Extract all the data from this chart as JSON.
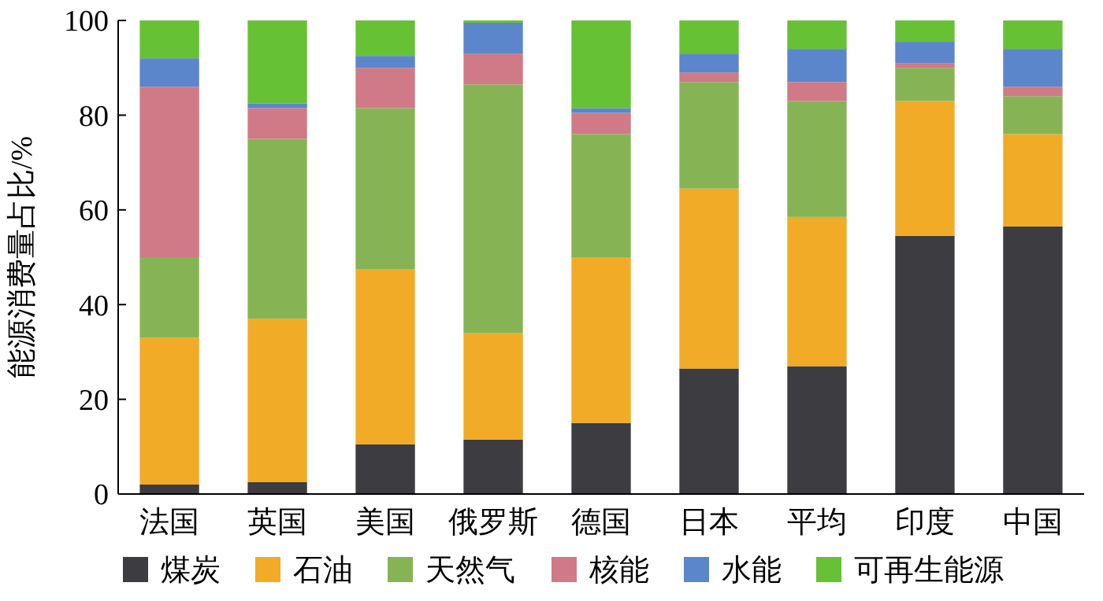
{
  "chart_data": {
    "type": "bar",
    "stacked": true,
    "ylabel": "能源消费量占比/%",
    "categories": [
      "法国",
      "英国",
      "美国",
      "俄罗斯",
      "德国",
      "日本",
      "平均",
      "印度",
      "中国"
    ],
    "series": [
      {
        "name": "煤炭",
        "color": "#3d3c40",
        "values": [
          2,
          2.5,
          10.5,
          11.5,
          15,
          26.5,
          27,
          54.5,
          56.5
        ]
      },
      {
        "name": "石油",
        "color": "#f2ab27",
        "values": [
          31,
          34.5,
          37,
          22.5,
          35,
          38,
          31.5,
          28.5,
          19.5
        ]
      },
      {
        "name": "天然气",
        "color": "#86b454",
        "values": [
          17,
          38,
          34,
          52.5,
          26,
          22.5,
          24.5,
          7,
          8
        ]
      },
      {
        "name": "核能",
        "color": "#cf7a86",
        "values": [
          36,
          6.5,
          8.5,
          6.5,
          4.5,
          2,
          4,
          1,
          2
        ]
      },
      {
        "name": "水能",
        "color": "#5b86cc",
        "values": [
          6,
          1,
          2.5,
          6.5,
          1,
          4,
          7,
          4.5,
          8
        ]
      },
      {
        "name": "可再生能源",
        "color": "#66c234",
        "values": [
          8,
          17.5,
          7.5,
          0.5,
          18.5,
          7,
          6,
          4.5,
          6
        ]
      }
    ],
    "ylim": [
      0,
      100
    ],
    "yticks": [
      0,
      20,
      40,
      60,
      80,
      100
    ],
    "grid": false,
    "legend": "bottom"
  }
}
